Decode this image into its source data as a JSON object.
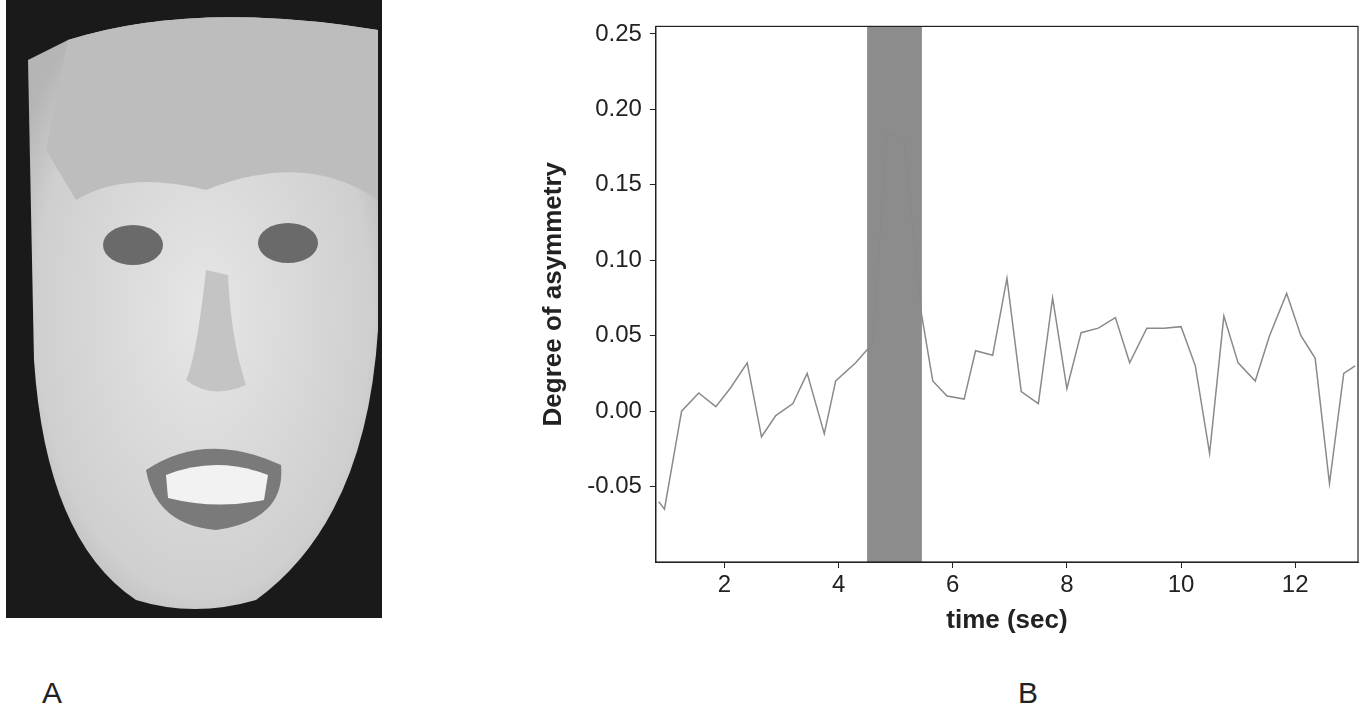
{
  "panel_labels": [
    "A",
    "B"
  ],
  "chart_data": {
    "type": "line",
    "x_label": "time (sec)",
    "y_label": "Degree of asymmetry",
    "x": [
      0.85,
      0.95,
      1.25,
      1.55,
      1.85,
      2.1,
      2.4,
      2.65,
      2.9,
      3.2,
      3.45,
      3.75,
      3.95,
      4.3,
      4.6,
      4.85,
      5.15,
      5.45,
      5.65,
      5.9,
      6.2,
      6.4,
      6.7,
      6.95,
      7.2,
      7.5,
      7.75,
      8.0,
      8.25,
      8.55,
      8.85,
      9.1,
      9.4,
      9.7,
      10.0,
      10.25,
      10.5,
      10.75,
      11.0,
      11.3,
      11.55,
      11.85,
      12.1,
      12.35,
      12.6,
      12.85,
      13.05
    ],
    "values": [
      -0.06,
      -0.065,
      0.0,
      0.012,
      0.003,
      0.015,
      0.032,
      -0.017,
      -0.003,
      0.005,
      0.025,
      -0.015,
      0.02,
      0.032,
      0.045,
      0.185,
      0.18,
      0.065,
      0.02,
      0.01,
      0.008,
      0.04,
      0.037,
      0.088,
      0.013,
      0.005,
      0.075,
      0.015,
      0.052,
      0.055,
      0.062,
      0.032,
      0.055,
      0.055,
      0.056,
      0.03,
      -0.028,
      0.063,
      0.032,
      0.02,
      0.05,
      0.078,
      0.05,
      0.035,
      -0.048,
      0.025,
      0.03
    ],
    "color": "#8a8a8a",
    "xlim": [
      0.8,
      13.1
    ],
    "ylim": [
      -0.1,
      0.255
    ],
    "xticks": [
      2,
      4,
      6,
      8,
      10,
      12
    ],
    "yticks": [
      -0.05,
      {
        "value": 0.0,
        "label": "0.00"
      },
      0.05,
      {
        "value": 0.1,
        "label": "0.10"
      },
      0.15,
      {
        "value": 0.2,
        "label": "0.20"
      },
      0.25
    ],
    "grid": false,
    "shaded_span": [
      4.5,
      5.46
    ]
  }
}
